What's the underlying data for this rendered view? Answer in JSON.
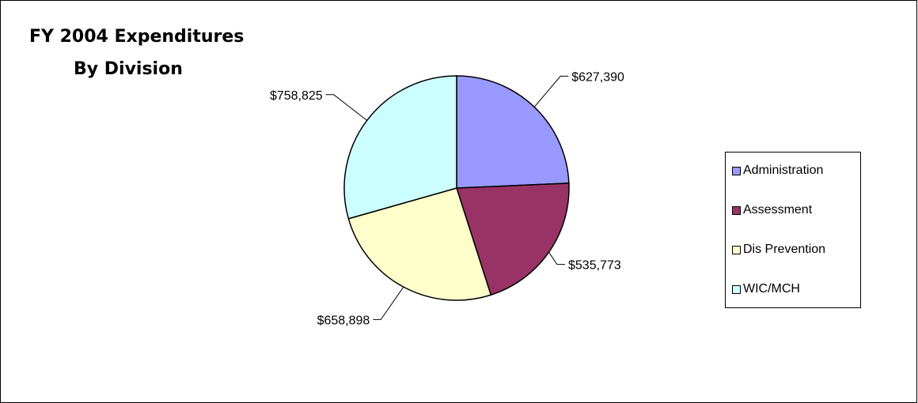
{
  "chart_data": {
    "type": "pie",
    "title": "FY 2004 Expenditures",
    "subtitle": "By Division",
    "categories": [
      "Administration",
      "Assessment",
      "Dis Prevention",
      "WIC/MCH"
    ],
    "values": [
      627390,
      535773,
      658898,
      758825
    ],
    "data_labels": [
      "$627,390",
      "$535,773",
      "$658,898",
      "$758,825"
    ],
    "colors": [
      "#9999ff",
      "#993366",
      "#ffffcc",
      "#ccffff"
    ],
    "start_angle": "12 o'clock",
    "direction": "clockwise",
    "legend_position": "right"
  }
}
